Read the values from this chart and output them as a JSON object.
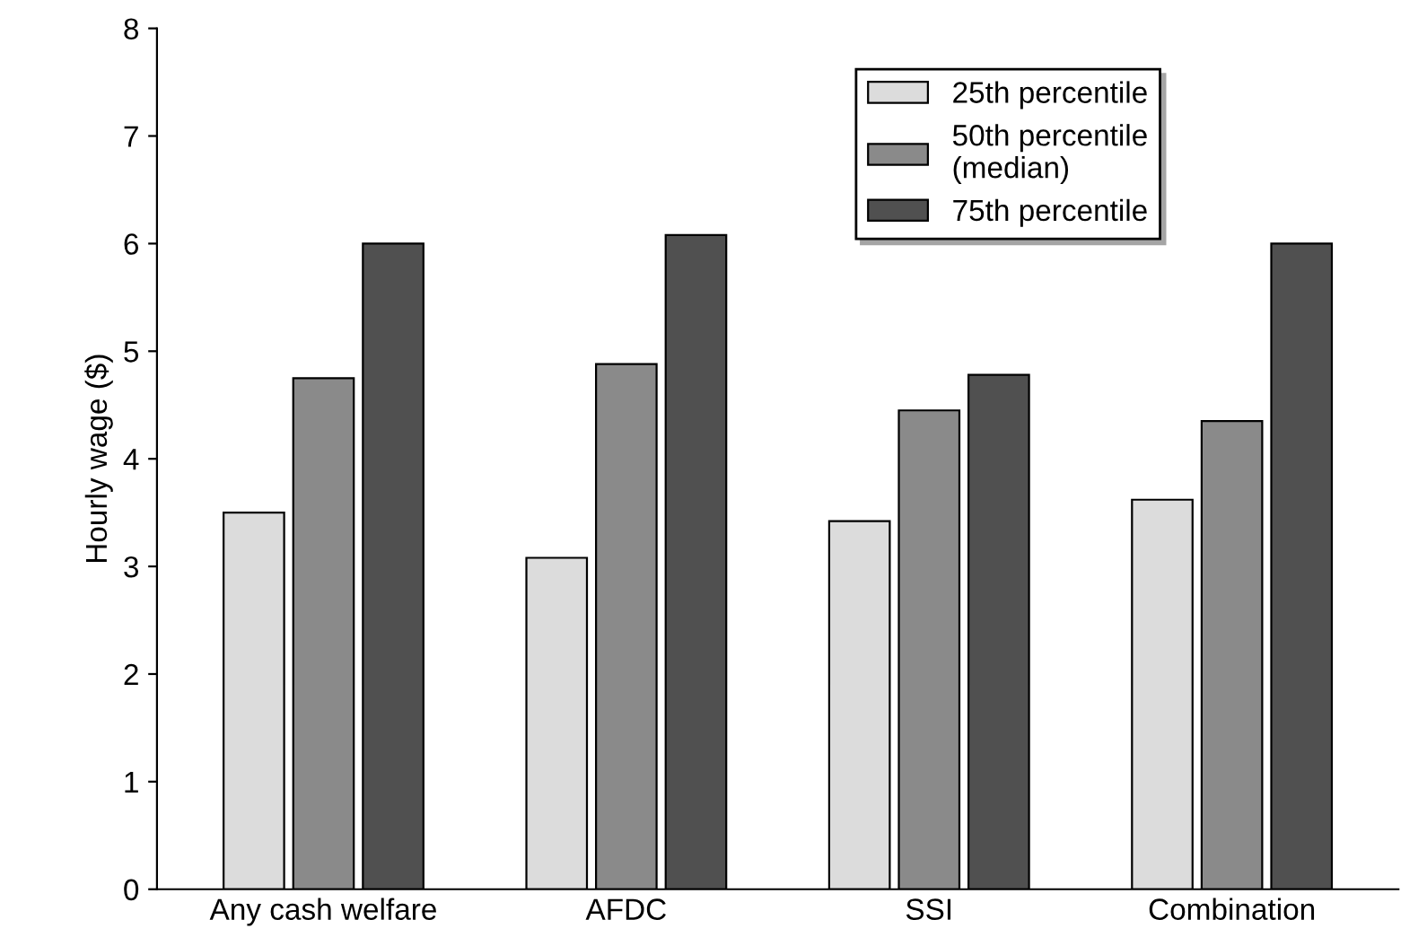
{
  "chart_data": {
    "type": "bar",
    "ylabel": "Hourly wage ($)",
    "categories": [
      "Any cash welfare",
      "AFDC",
      "SSI",
      "Combination"
    ],
    "series": [
      {
        "name": "25th percentile",
        "color": "#dcdcdc",
        "values": [
          3.5,
          3.08,
          3.42,
          3.62
        ]
      },
      {
        "name": "50th percentile\n(median)",
        "color": "#8a8a8a",
        "values": [
          4.75,
          4.88,
          4.45,
          4.35
        ]
      },
      {
        "name": "75th percentile",
        "color": "#505050",
        "values": [
          6.0,
          6.08,
          4.78,
          6.0
        ]
      }
    ],
    "ylim": [
      0,
      8
    ],
    "yticks": [
      0,
      1,
      2,
      3,
      4,
      5,
      6,
      7,
      8
    ],
    "grid": false,
    "legend": "top right"
  }
}
